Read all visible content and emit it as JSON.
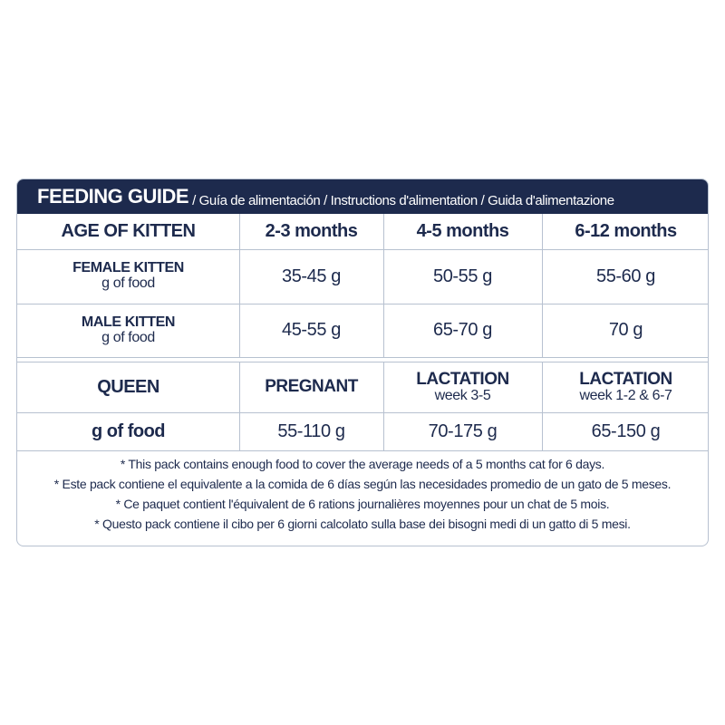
{
  "header": {
    "title": "FEEDING GUIDE",
    "subtitle": "/ Guía de alimentación / Instructions d'alimentation / Guida d'alimentazione"
  },
  "kitten_table": {
    "header": [
      "AGE OF KITTEN",
      "2-3 months",
      "4-5 months",
      "6-12 months"
    ],
    "rows": [
      {
        "label": "FEMALE KITTEN",
        "sublabel": "g of food",
        "cells": [
          "35-45 g",
          "50-55 g",
          "55-60 g"
        ]
      },
      {
        "label": "MALE KITTEN",
        "sublabel": "g of food",
        "cells": [
          "45-55 g",
          "65-70 g",
          "70 g"
        ]
      }
    ]
  },
  "queen_table": {
    "header": {
      "label": "QUEEN",
      "cells": [
        {
          "title": "PREGNANT"
        },
        {
          "title": "LACTATION",
          "sub": "week 3-5"
        },
        {
          "title": "LACTATION",
          "sub": "week 1-2 & 6-7"
        }
      ]
    },
    "row": {
      "label": "g of food",
      "cells": [
        "55-110 g",
        "70-175 g",
        "65-150 g"
      ]
    }
  },
  "notes": [
    "* This pack contains enough food to cover the average needs of a 5 months cat for 6 days.",
    "* Este pack contiene el equivalente a la comida de 6 días según las necesidades promedio de un gato de 5 meses.",
    "* Ce paquet contient l'équivalent de 6 rations journalières moyennes pour un chat de 5 mois.",
    "* Questo pack contiene il cibo per 6 giorni calcolato sulla base dei bisogni medi di un gatto di 5 mesi."
  ]
}
